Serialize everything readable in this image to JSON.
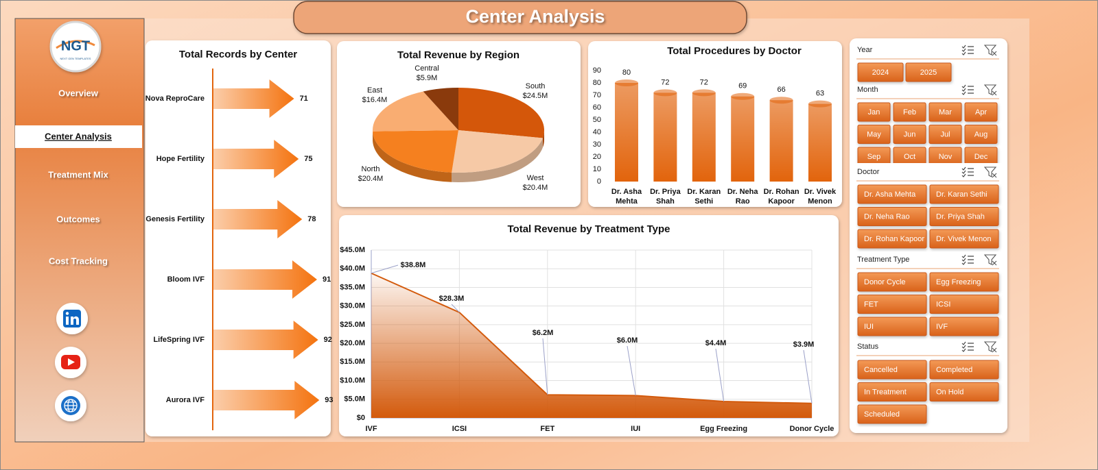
{
  "header": {
    "title": "Center Analysis"
  },
  "logo": {
    "text": "NGT",
    "subtitle": "NEXT GEN TEMPLATES"
  },
  "nav": {
    "items": [
      "Overview",
      "Center Analysis",
      "Treatment Mix",
      "Outcomes",
      "Cost Tracking"
    ],
    "active": 1
  },
  "slicers": [
    {
      "title": "Year",
      "items": [
        "2024",
        "2025"
      ]
    },
    {
      "title": "Month",
      "items": [
        "Jan",
        "Feb",
        "Mar",
        "Apr",
        "May",
        "Jun",
        "Jul",
        "Aug",
        "Sep",
        "Oct",
        "Nov",
        "Dec"
      ]
    },
    {
      "title": "Doctor",
      "items": [
        "Dr. Asha Mehta",
        "Dr. Karan Sethi",
        "Dr. Neha Rao",
        "Dr. Priya Shah",
        "Dr. Rohan Kapoor",
        "Dr. Vivek Menon"
      ]
    },
    {
      "title": "Treatment Type",
      "items": [
        "Donor Cycle",
        "Egg Freezing",
        "FET",
        "ICSI",
        "IUI",
        "IVF"
      ]
    },
    {
      "title": "Status",
      "items": [
        "Cancelled",
        "Completed",
        "In Treatment",
        "On Hold",
        "Scheduled"
      ]
    }
  ],
  "chart_data": [
    {
      "type": "arrow-bar",
      "title": "Total Records by Center",
      "categories": [
        "Nova ReproCare",
        "Hope Fertility",
        "Genesis Fertility",
        "Bloom IVF",
        "LifeSpring IVF",
        "Aurora IVF"
      ],
      "values": [
        71,
        75,
        78,
        91,
        92,
        93
      ],
      "color": "#f4730f"
    },
    {
      "type": "pie",
      "title": "Total Revenue by Region",
      "categories": [
        "South",
        "West",
        "North",
        "East",
        "Central"
      ],
      "values": [
        24.5,
        20.4,
        20.4,
        16.4,
        5.9
      ],
      "value_labels": [
        "$24.5M",
        "$20.4M",
        "$20.4M",
        "$16.4M",
        "$5.9M"
      ],
      "colors": [
        "#d4570a",
        "#f6c9a6",
        "#f5801f",
        "#f9ad72",
        "#8a3a0c"
      ]
    },
    {
      "type": "bar",
      "title": "Total Procedures by Doctor",
      "categories": [
        "Dr. Asha Mehta",
        "Dr. Priya Shah",
        "Dr. Karan Sethi",
        "Dr. Neha Rao",
        "Dr. Rohan Kapoor",
        "Dr. Vivek Menon"
      ],
      "values": [
        80,
        72,
        72,
        69,
        66,
        63
      ],
      "color": "#e2640c",
      "ylim": [
        0,
        90
      ],
      "yticks": [
        0,
        10,
        20,
        30,
        40,
        50,
        60,
        70,
        80,
        90
      ],
      "grid": false
    },
    {
      "type": "area",
      "title": "Total Revenue by Treatment Type",
      "categories": [
        "IVF",
        "ICSI",
        "FET",
        "IUI",
        "Egg Freezing",
        "Donor Cycle"
      ],
      "values": [
        38.8,
        28.3,
        6.2,
        6.0,
        4.4,
        3.9
      ],
      "value_labels": [
        "$38.8M",
        "$28.3M",
        "$6.2M",
        "$6.0M",
        "$4.4M",
        "$3.9M"
      ],
      "color": "#d35a0c",
      "ylim": [
        0,
        45
      ],
      "yticks": [
        {
          "value": 0,
          "label": "$0"
        },
        {
          "value": 5,
          "label": "$5.0M"
        },
        {
          "value": 10,
          "label": "$10.0M"
        },
        {
          "value": 15,
          "label": "$15.0M"
        },
        {
          "value": 20,
          "label": "$20.0M"
        },
        {
          "value": 25,
          "label": "$25.0M"
        },
        {
          "value": 30,
          "label": "$30.0M"
        },
        {
          "value": 35,
          "label": "$35.0M"
        },
        {
          "value": 40,
          "label": "$40.0M"
        },
        {
          "value": 45,
          "label": "$45.0M"
        }
      ],
      "grid": true
    }
  ]
}
